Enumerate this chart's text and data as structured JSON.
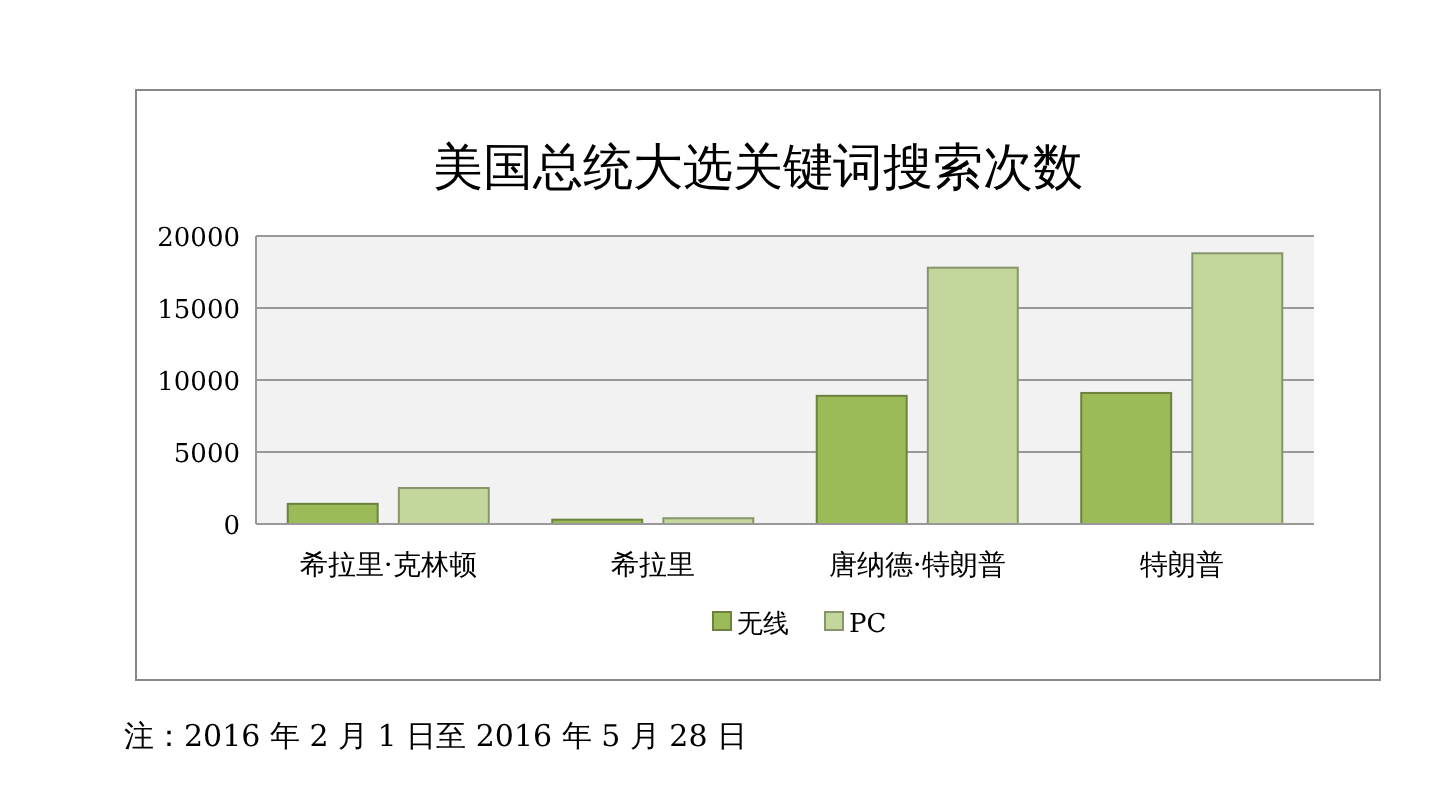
{
  "chart_data": {
    "type": "bar",
    "title": "美国总统大选关键词搜索次数",
    "categories": [
      "希拉里·克林顿",
      "希拉里",
      "唐纳德·特朗普",
      "特朗普"
    ],
    "series": [
      {
        "name": "无线",
        "color": "#9bbb59",
        "values": [
          1400,
          300,
          8900,
          9100
        ]
      },
      {
        "name": "PC",
        "color": "#c3d69b",
        "values": [
          2500,
          400,
          17800,
          18800
        ]
      }
    ],
    "ylim": [
      0,
      20000
    ],
    "yticks": [
      0,
      5000,
      10000,
      15000,
      20000
    ],
    "grid": "y",
    "legend": "bottom",
    "annotations": [
      "注：2016 年 2 月 1 日至 2016 年 5 月 28 日"
    ]
  }
}
